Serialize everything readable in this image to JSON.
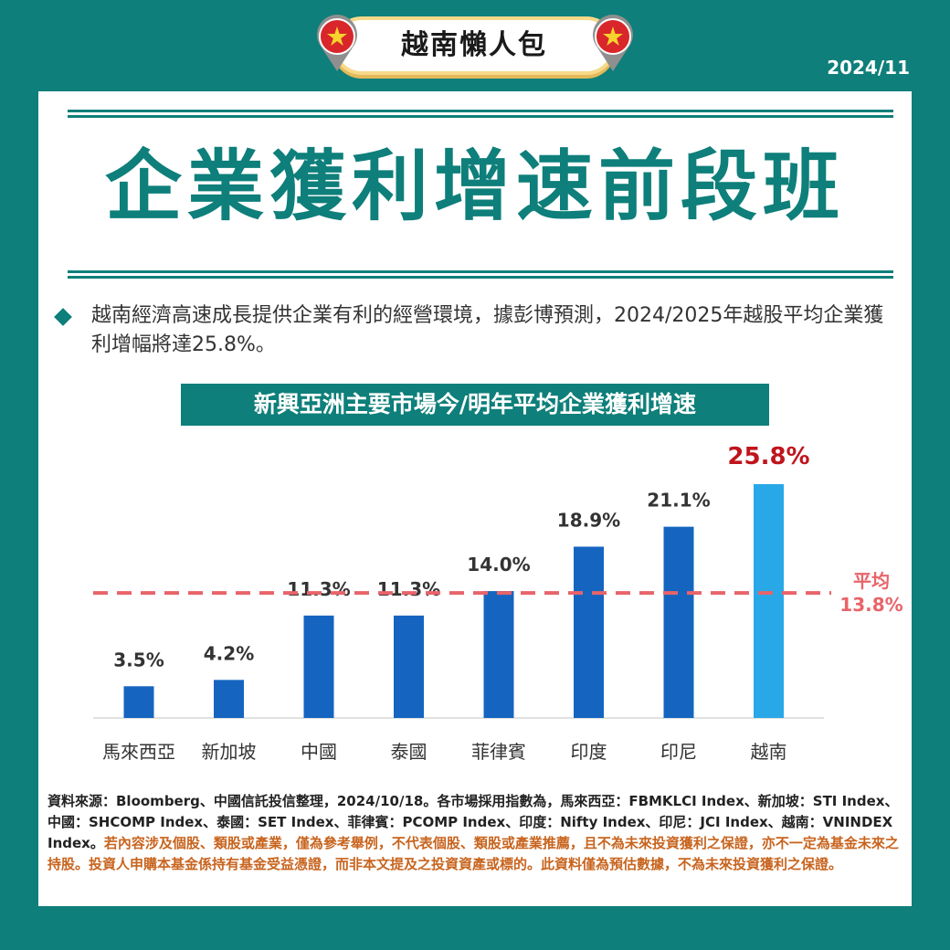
{
  "badge": {
    "label": "越南懶人包"
  },
  "date": "2024/11",
  "headline": "企業獲利增速前段班",
  "bullet": "越南經濟高速成長提供企業有利的經營環境，據彭博預測，2024/2025年越股平均企業獲利增幅將達25.8%。",
  "chart_data": {
    "type": "bar",
    "title": "新興亞洲主要市場今/明年平均企業獲利增速",
    "categories": [
      "馬來西亞",
      "新加坡",
      "中國",
      "泰國",
      "菲律賓",
      "印度",
      "印尼",
      "越南"
    ],
    "values": [
      3.5,
      4.2,
      11.3,
      11.3,
      14.0,
      18.9,
      21.1,
      25.8
    ],
    "data_labels": [
      "3.5%",
      "4.2%",
      "11.3%",
      "11.3%",
      "14.0%",
      "18.9%",
      "21.1%",
      "25.8%"
    ],
    "reference_line": {
      "value": 13.8,
      "label_line1": "平均",
      "label_line2": "13.8%",
      "color": "#e8646a"
    },
    "colors": {
      "bar": "#1565c0",
      "highlight": "#29a8e8",
      "highlight_label": "#c0141c"
    },
    "highlight_index": 7,
    "ylim": [
      0,
      25.8
    ],
    "xlabel": "",
    "ylabel": ""
  },
  "source": {
    "main": "資料來源：Bloomberg、中國信託投信整理，2024/10/18。各市場採用指數為，馬來西亞：FBMKLCI Index、新加坡：STI Index、中國：SHCOMP Index、泰國：SET Index、菲律賓：PCOMP Index、印度：Nifty Index、印尼：JCI Index、越南：VNINDEX Index。",
    "warning": "若內容涉及個股、類股或產業，僅為參考舉例，不代表個股、類股或產業推薦，且不為未來投資獲利之保證，亦不一定為基金未來之持股。投資人申購本基金係持有基金受益憑證，而非本文提及之投資資產或標的。此資料僅為預估數據，不為未來投資獲利之保證。"
  },
  "colors": {
    "teal": "#0e7f7a",
    "flag_red": "#d8262a",
    "flag_star": "#f6d32d"
  }
}
